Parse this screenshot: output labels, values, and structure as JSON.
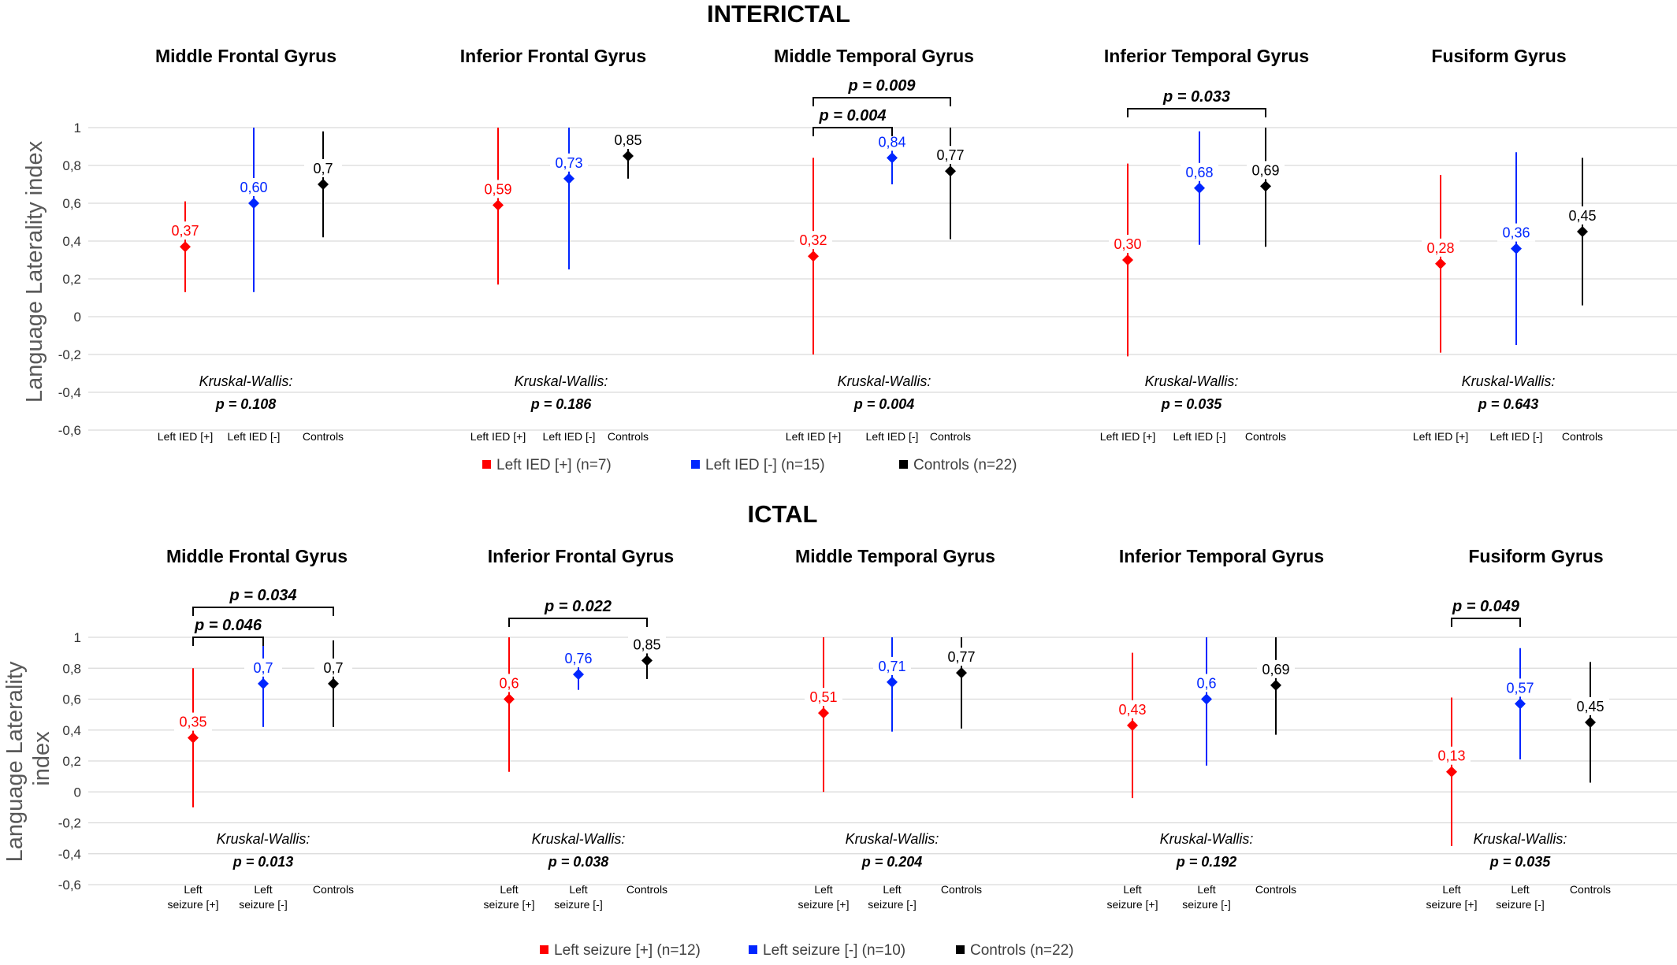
{
  "colors": {
    "group1": "#ff0000",
    "group2": "#0026ff",
    "group3": "#000000",
    "grid": "#d9d9d9"
  },
  "y_ticks": [
    "1",
    "0,8",
    "0,6",
    "0,4",
    "0,2",
    "0",
    "-0,2",
    "-0,4",
    "-0,6"
  ],
  "chart_data": [
    {
      "type": "scatter",
      "title": "INTERICTAL",
      "ylabel": "Language Laterality index",
      "ylim": [
        -0.6,
        1.0
      ],
      "grid": true,
      "categories": [
        "Left IED [+]",
        "Left IED [-]",
        "Controls"
      ],
      "legend": {
        "placement": "bottom",
        "entries": [
          "Left IED [+] (n=7)",
          "Left IED [-] (n=15)",
          "Controls (n=22)"
        ]
      },
      "panels": [
        {
          "title": "Middle Frontal Gyrus",
          "points": [
            {
              "value": 0.37,
              "low": 0.13,
              "high": 0.61,
              "label": "0,37"
            },
            {
              "value": 0.6,
              "low": 0.13,
              "high": 1.0,
              "label": "0,60"
            },
            {
              "value": 0.7,
              "low": 0.42,
              "high": 0.98,
              "label": "0,7"
            }
          ],
          "kruskal_label": "Kruskal-Wallis:",
          "kruskal_p": "p = 0.108",
          "comparisons": []
        },
        {
          "title": "Inferior Frontal Gyrus",
          "points": [
            {
              "value": 0.59,
              "low": 0.17,
              "high": 1.0,
              "label": "0,59"
            },
            {
              "value": 0.73,
              "low": 0.25,
              "high": 1.0,
              "label": "0,73"
            },
            {
              "value": 0.85,
              "low": 0.73,
              "high": 0.97,
              "label": "0,85"
            }
          ],
          "kruskal_label": "Kruskal-Wallis:",
          "kruskal_p": "p = 0.186",
          "comparisons": []
        },
        {
          "title": "Middle Temporal Gyrus",
          "points": [
            {
              "value": 0.32,
              "low": -0.2,
              "high": 0.84,
              "label": "0,32"
            },
            {
              "value": 0.84,
              "low": 0.7,
              "high": 0.98,
              "label": "0,84"
            },
            {
              "value": 0.77,
              "low": 0.41,
              "high": 1.0,
              "label": "0,77"
            }
          ],
          "kruskal_label": "Kruskal-Wallis:",
          "kruskal_p": "p = 0.004",
          "comparisons": [
            {
              "from": 0,
              "to": 1,
              "label": "p = 0.004"
            },
            {
              "from": 0,
              "to": 2,
              "label": "p = 0.009"
            }
          ]
        },
        {
          "title": "Inferior Temporal Gyrus",
          "points": [
            {
              "value": 0.3,
              "low": -0.21,
              "high": 0.81,
              "label": "0,30"
            },
            {
              "value": 0.68,
              "low": 0.38,
              "high": 0.98,
              "label": "0,68"
            },
            {
              "value": 0.69,
              "low": 0.37,
              "high": 1.0,
              "label": "0,69"
            }
          ],
          "kruskal_label": "Kruskal-Wallis:",
          "kruskal_p": "p = 0.035",
          "comparisons": [
            {
              "from": 0,
              "to": 2,
              "label": "p = 0.033"
            }
          ]
        },
        {
          "title": "Fusiform Gyrus",
          "points": [
            {
              "value": 0.28,
              "low": -0.19,
              "high": 0.75,
              "label": "0,28"
            },
            {
              "value": 0.36,
              "low": -0.15,
              "high": 0.87,
              "label": "0,36"
            },
            {
              "value": 0.45,
              "low": 0.06,
              "high": 0.84,
              "label": "0,45"
            }
          ],
          "kruskal_label": "Kruskal-Wallis:",
          "kruskal_p": "p = 0.643",
          "comparisons": []
        }
      ]
    },
    {
      "type": "scatter",
      "title": "ICTAL",
      "ylabel": "Language Laterality index",
      "ylim": [
        -0.6,
        1.0
      ],
      "grid": true,
      "categories": [
        "Left seizure [+]",
        "Left seizure [-]",
        "Controls"
      ],
      "legend": {
        "placement": "bottom",
        "entries": [
          "Left seizure [+] (n=12)",
          "Left seizure [-] (n=10)",
          "Controls (n=22)"
        ]
      },
      "panels": [
        {
          "title": "Middle Frontal Gyrus",
          "points": [
            {
              "value": 0.35,
              "low": -0.1,
              "high": 0.8,
              "label": "0,35"
            },
            {
              "value": 0.7,
              "low": 0.42,
              "high": 0.98,
              "label": "0,7"
            },
            {
              "value": 0.7,
              "low": 0.42,
              "high": 0.98,
              "label": "0,7"
            }
          ],
          "kruskal_label": "Kruskal-Wallis:",
          "kruskal_p": "p = 0.013",
          "comparisons": [
            {
              "from": 0,
              "to": 1,
              "label": "p = 0.046"
            },
            {
              "from": 0,
              "to": 2,
              "label": "p = 0.034"
            }
          ]
        },
        {
          "title": "Inferior Frontal Gyrus",
          "points": [
            {
              "value": 0.6,
              "low": 0.13,
              "high": 1.0,
              "label": "0,6"
            },
            {
              "value": 0.76,
              "low": 0.66,
              "high": 0.86,
              "label": "0,76"
            },
            {
              "value": 0.85,
              "low": 0.73,
              "high": 0.97,
              "label": "0,85"
            }
          ],
          "kruskal_label": "Kruskal-Wallis:",
          "kruskal_p": "p = 0.038",
          "comparisons": [
            {
              "from": 0,
              "to": 2,
              "label": "p = 0.022"
            }
          ]
        },
        {
          "title": "Middle Temporal Gyrus",
          "points": [
            {
              "value": 0.51,
              "low": 0.0,
              "high": 1.0,
              "label": "0,51"
            },
            {
              "value": 0.71,
              "low": 0.39,
              "high": 1.0,
              "label": "0,71"
            },
            {
              "value": 0.77,
              "low": 0.41,
              "high": 1.0,
              "label": "0,77"
            }
          ],
          "kruskal_label": "Kruskal-Wallis:",
          "kruskal_p": "p = 0.204",
          "comparisons": []
        },
        {
          "title": "Inferior Temporal Gyrus",
          "points": [
            {
              "value": 0.43,
              "low": -0.04,
              "high": 0.9,
              "label": "0,43"
            },
            {
              "value": 0.6,
              "low": 0.17,
              "high": 1.0,
              "label": "0,6"
            },
            {
              "value": 0.69,
              "low": 0.37,
              "high": 1.0,
              "label": "0,69"
            }
          ],
          "kruskal_label": "Kruskal-Wallis:",
          "kruskal_p": "p = 0.192",
          "comparisons": []
        },
        {
          "title": "Fusiform Gyrus",
          "points": [
            {
              "value": 0.13,
              "low": -0.35,
              "high": 0.61,
              "label": "0,13"
            },
            {
              "value": 0.57,
              "low": 0.21,
              "high": 0.93,
              "label": "0,57"
            },
            {
              "value": 0.45,
              "low": 0.06,
              "high": 0.84,
              "label": "0,45"
            }
          ],
          "kruskal_label": "Kruskal-Wallis:",
          "kruskal_p": "p = 0.035",
          "comparisons": [
            {
              "from": 0,
              "to": 1,
              "label": "p = 0.049"
            }
          ]
        }
      ]
    }
  ]
}
